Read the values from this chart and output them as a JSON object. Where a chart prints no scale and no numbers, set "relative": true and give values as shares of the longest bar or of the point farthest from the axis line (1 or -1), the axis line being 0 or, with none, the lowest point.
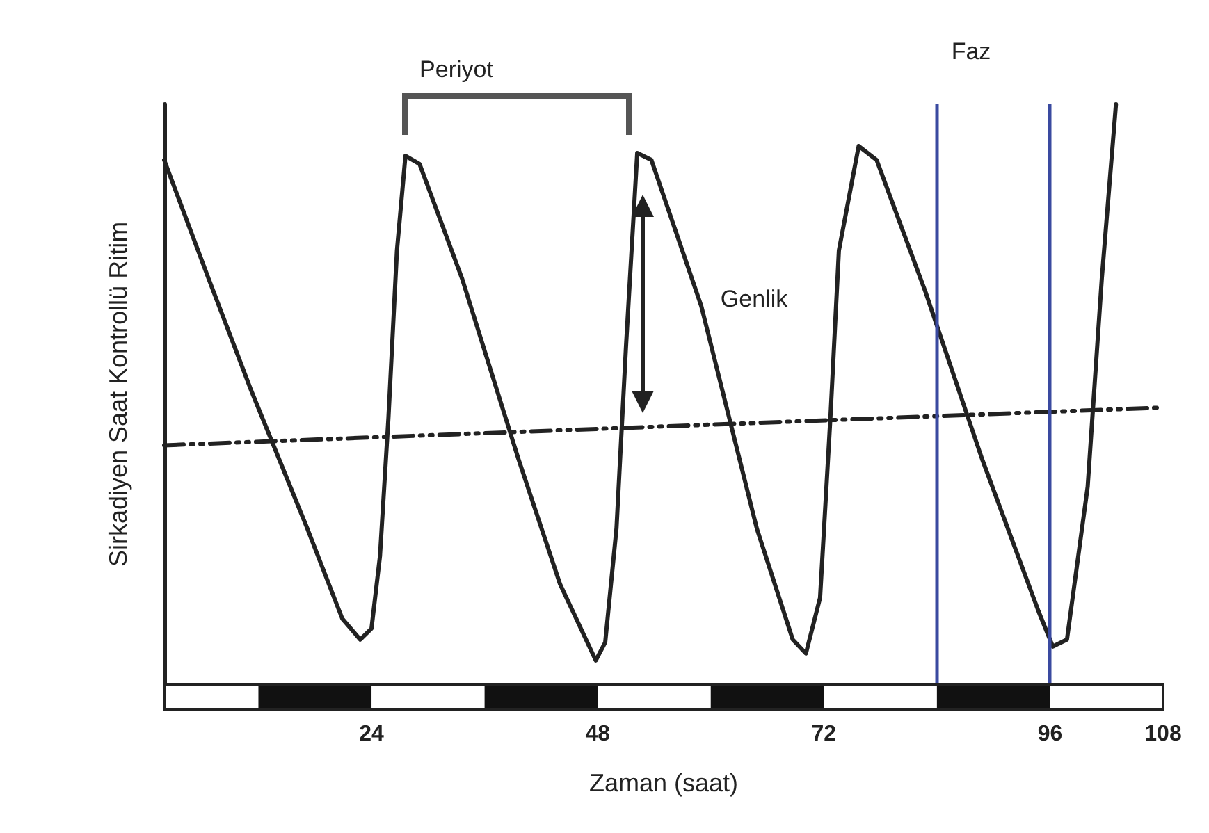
{
  "chart_data": {
    "type": "line",
    "relative": true,
    "xlabel": "Zaman (saat)",
    "ylabel": "Sirkadiyen Saat Kontrollü Ritim",
    "xlim": [
      2,
      108
    ],
    "xticks": [
      24,
      48,
      72,
      96,
      108
    ],
    "marker": "none",
    "series": [
      {
        "color": "#222222",
        "line_style": "solid",
        "x": [
          2,
          6.7,
          11.2,
          17.2,
          20.9,
          22.8,
          24.0,
          24.9,
          25.8,
          26.7,
          27.6,
          29.1,
          33.6,
          39.6,
          44.0,
          47.8,
          48.8,
          50.0,
          51.0,
          52.2,
          53.7,
          59.0,
          64.9,
          68.7,
          70.1,
          71.6,
          72.7,
          73.6,
          75.7,
          77.6,
          82.8,
          88.8,
          94.8,
          96.3,
          97.8,
          100.0,
          101.5,
          103.0
        ],
        "values": [
          0.904,
          0.7,
          0.508,
          0.268,
          0.113,
          0.077,
          0.096,
          0.221,
          0.46,
          0.748,
          0.911,
          0.897,
          0.7,
          0.388,
          0.173,
          0.041,
          0.072,
          0.269,
          0.58,
          0.916,
          0.904,
          0.652,
          0.268,
          0.077,
          0.053,
          0.149,
          0.46,
          0.748,
          0.928,
          0.904,
          0.676,
          0.388,
          0.125,
          0.065,
          0.077,
          0.341,
          0.7,
          1.0
        ]
      },
      {
        "color": "#222222",
        "line_style": "dashed",
        "x": [
          2,
          107.9
        ],
        "values": [
          0.412,
          0.477
        ]
      }
    ],
    "ref_lines": [
      {
        "axis": "x",
        "value": 84,
        "color": "#3a4aa0"
      },
      {
        "axis": "x",
        "value": 96,
        "color": "#3a4aa0"
      }
    ],
    "annotations": [
      "Periyot",
      "Genlik",
      "Faz"
    ]
  }
}
